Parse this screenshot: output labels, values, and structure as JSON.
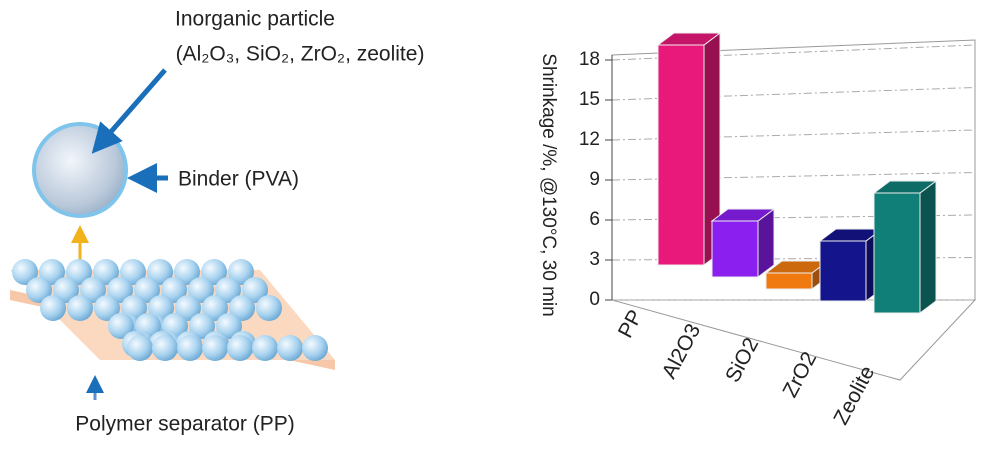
{
  "diagram": {
    "particle_title": "Inorganic particle",
    "particle_types": "(Al₂O₃, SiO₂, ZrO₂, zeolite)",
    "binder_label": "Binder (PVA)",
    "separator_label": "Polymer separator (PP)"
  },
  "chart_data": {
    "type": "bar3d",
    "categories": [
      "PP",
      "Al2O3",
      "SiO2",
      "ZrO2",
      "Zeolite"
    ],
    "values": [
      16.5,
      4.2,
      1.2,
      4.5,
      9
    ],
    "colors": [
      "#e8197a",
      "#8a1ff0",
      "#f07a10",
      "#14148c",
      "#0f7f78"
    ],
    "y_label": "Shrinkage /%, @130°C, 30 min",
    "ylim": [
      0,
      18
    ],
    "yticks": [
      0,
      3,
      6,
      9,
      12,
      15,
      18
    ],
    "grid": true
  }
}
